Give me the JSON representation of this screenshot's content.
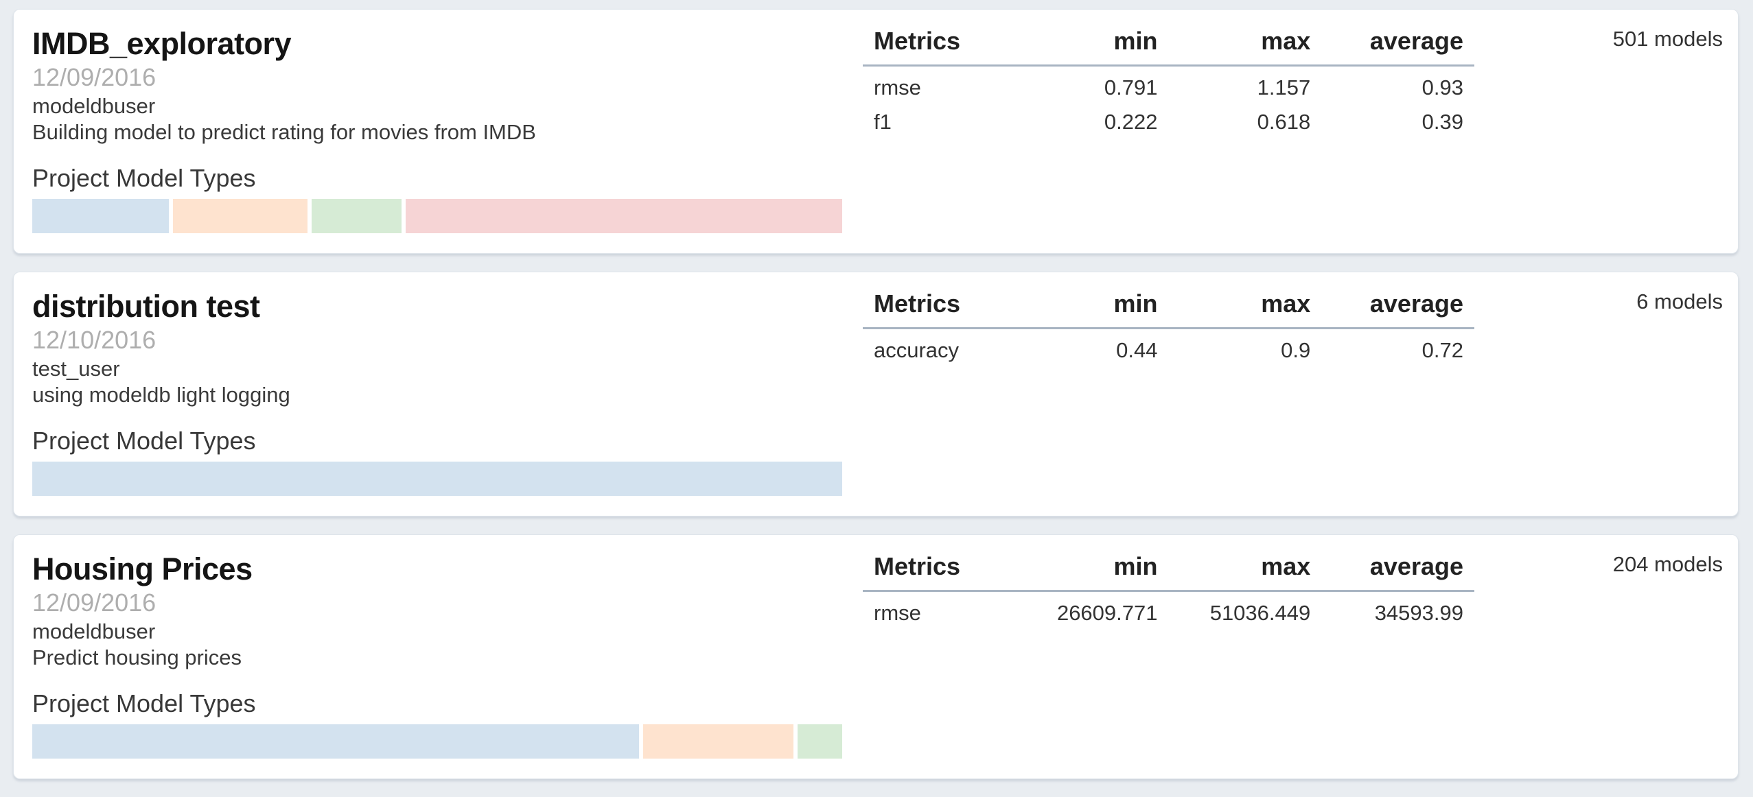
{
  "page": {
    "background": "#e9edf1"
  },
  "labels": {
    "model_types_heading": "Project Model Types"
  },
  "table": {
    "headers": {
      "metrics": "Metrics",
      "min": "min",
      "max": "max",
      "average": "average"
    }
  },
  "colors": {
    "blue": "#d3e2ef",
    "orange": "#fee3cf",
    "green": "#d6ebd5",
    "red": "#f6d4d5"
  },
  "projects": [
    {
      "name": "IMDB_exploratory",
      "date": "12/09/2016",
      "author": "modeldbuser",
      "description": "Building model to predict rating for movies from IMDB",
      "models_count": "501 models",
      "metrics": [
        {
          "name": "rmse",
          "min": "0.791",
          "max": "1.157",
          "average": "0.93"
        },
        {
          "name": "f1",
          "min": "0.222",
          "max": "0.618",
          "average": "0.39"
        }
      ],
      "model_types": [
        {
          "type": "blue",
          "weight": 199
        },
        {
          "type": "orange",
          "weight": 196
        },
        {
          "type": "green",
          "weight": 131
        },
        {
          "type": "red",
          "weight": 636
        }
      ]
    },
    {
      "name": "distribution test",
      "date": "12/10/2016",
      "author": "test_user",
      "description": "using modeldb light logging",
      "models_count": "6 models",
      "metrics": [
        {
          "name": "accuracy",
          "min": "0.44",
          "max": "0.9",
          "average": "0.72"
        }
      ],
      "model_types": [
        {
          "type": "blue",
          "weight": 1
        }
      ]
    },
    {
      "name": "Housing Prices",
      "date": "12/09/2016",
      "author": "modeldbuser",
      "description": "Predict housing prices",
      "models_count": "204 models",
      "metrics": [
        {
          "name": "rmse",
          "min": "26609.771",
          "max": "51036.449",
          "average": "34593.99"
        }
      ],
      "model_types": [
        {
          "type": "blue",
          "weight": 892
        },
        {
          "type": "orange",
          "weight": 220
        },
        {
          "type": "green",
          "weight": 66
        }
      ]
    }
  ]
}
